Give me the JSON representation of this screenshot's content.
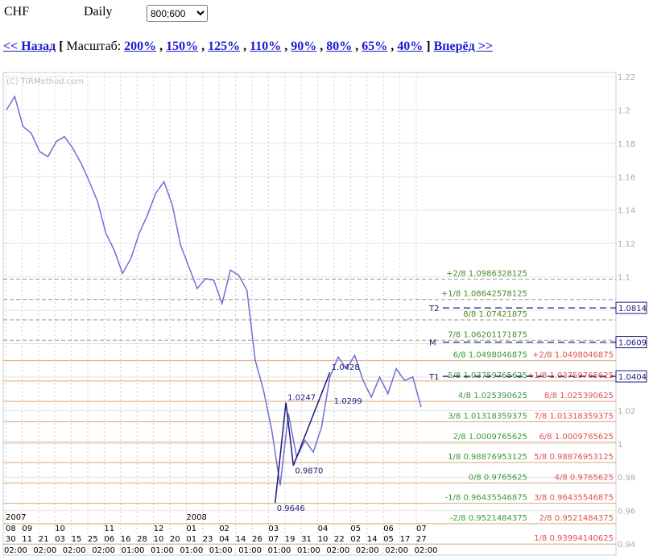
{
  "header": {
    "symbol": "CHF",
    "period": "Daily",
    "size_select": "800;600"
  },
  "nav": {
    "back": "<< Назад",
    "open": "[",
    "label": "Масштаб:",
    "scales": [
      "200%",
      "150%",
      "125%",
      "110%",
      "90%",
      "80%",
      "65%",
      "40%"
    ],
    "separator": ",",
    "close": "]",
    "forward": "Вперёд >>"
  },
  "chart_data": {
    "type": "line",
    "watermark": "(C) TIRMethod.com",
    "series": [
      {
        "color": "#6f6fd6",
        "values": [
          1.2,
          1.208,
          1.19,
          1.186,
          1.175,
          1.172,
          1.181,
          1.184,
          1.177,
          1.168,
          1.157,
          1.145,
          1.126,
          1.116,
          1.102,
          1.111,
          1.126,
          1.137,
          1.15,
          1.157,
          1.143,
          1.119,
          1.106,
          1.093,
          1.099,
          1.098,
          1.084,
          1.104,
          1.101,
          1.092,
          1.05,
          1.032,
          1.008,
          0.975,
          1.018,
          0.992,
          1.002,
          0.995,
          1.01,
          1.04,
          1.052,
          1.045,
          1.053,
          1.038,
          1.028,
          1.04,
          1.03,
          1.045,
          1.038,
          1.04,
          1.022
        ]
      }
    ],
    "ylim": [
      0.9328,
      1.2224
    ],
    "yticks": [
      1.22,
      1.2,
      1.18,
      1.16,
      1.14,
      1.12,
      1.1,
      1.08,
      1.06,
      1.04,
      1.02,
      1,
      0.98,
      0.96,
      0.94
    ],
    "zigzag": {
      "color": "#1a1a7a",
      "x": [
        32.4,
        33.7,
        34.6,
        39.0
      ],
      "values": [
        0.9646,
        1.0247,
        0.987,
        1.0428
      ],
      "value_labels": [
        "0.9646",
        "1.0247",
        "0.9870",
        "1.0428"
      ]
    },
    "annotations": [
      {
        "x": 39.3,
        "value": 1.0299
      }
    ],
    "targets": [
      {
        "name": "T2",
        "value": 1.0814
      },
      {
        "name": "M",
        "value": 1.0609
      },
      {
        "name": "T1",
        "value": 1.0404
      }
    ],
    "levels": [
      {
        "value": 1.0986328125,
        "label": "+2/8 1.0986328125"
      },
      {
        "value": 1.08642578125,
        "label": "+1/8 1.08642578125"
      },
      {
        "value": 1.07421875,
        "label": "8/8 1.07421875"
      },
      {
        "value": 1.06201171875,
        "label": "7/8 1.06201171875"
      },
      {
        "value": 1.0498046875,
        "label": "6/8 1.0498046875",
        "label2": "+2/8 1.0498046875"
      },
      {
        "value": 1.03759765625,
        "label": "5/8 1.03759765625",
        "label2": "+1/8 1.03759765625"
      },
      {
        "value": 1.025390625,
        "label": "4/8 1.025390625",
        "label2": "8/8 1.025390625"
      },
      {
        "value": 1.01318359375,
        "label": "3/8 1.01318359375",
        "label2": "7/8 1.01318359375"
      },
      {
        "value": 1.0009765625,
        "label": "2/8 1.0009765625",
        "label2": "6/8 1.0009765625"
      },
      {
        "value": 0.98876953125,
        "label": "1/8 0.98876953125",
        "label2": "5/8 0.98876953125"
      },
      {
        "value": 0.9765625,
        "label": "0/8 0.9765625",
        "label2": "4/8 0.9765625"
      },
      {
        "value": 0.96435546875,
        "label": "-1/8 0.96435546875",
        "label2": "3/8 0.96435546875"
      },
      {
        "value": 0.9521484375,
        "label": "-2/8 0.9521484375",
        "label2": "2/8 0.9521484375"
      },
      {
        "value": 0.93994140625,
        "label2": "1/8 0.93994140625"
      }
    ],
    "x_axis": {
      "years": [
        "2007",
        null,
        null,
        null,
        null,
        null,
        null,
        null,
        null,
        null,
        null,
        "2008",
        null,
        null,
        null,
        null,
        null,
        null,
        null,
        null,
        null,
        null,
        null,
        null,
        null,
        null
      ],
      "months": [
        "08",
        "09",
        null,
        "10",
        null,
        null,
        "11",
        null,
        null,
        "12",
        null,
        "01",
        null,
        "02",
        null,
        null,
        "03",
        null,
        null,
        "04",
        null,
        "05",
        null,
        "06",
        null,
        "07"
      ],
      "days": [
        "30",
        "11",
        "21",
        "03",
        "15",
        "25",
        "06",
        "16",
        "28",
        "10",
        "20",
        "01",
        "23",
        "04",
        "14",
        "26",
        "07",
        "19",
        "31",
        "10",
        "22",
        "02",
        "14",
        "05",
        "17",
        "27"
      ],
      "times": [
        "02:00",
        "02:00",
        "02:00",
        "02:00",
        "01:00",
        "01:00",
        "01:00",
        "01:00",
        "01:00",
        "01:00",
        "01:00",
        "02:00",
        "02:00",
        "02:00",
        "02:00"
      ]
    }
  }
}
